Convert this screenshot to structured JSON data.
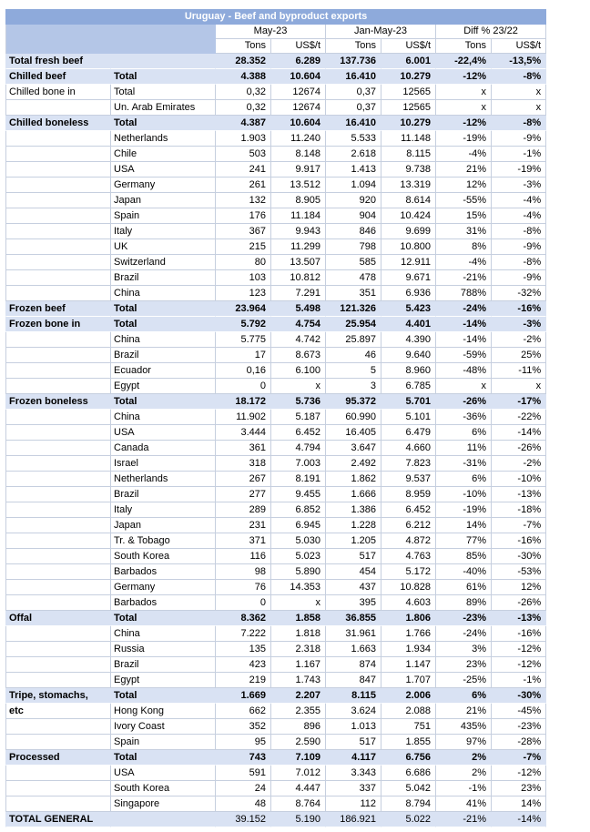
{
  "title": "Uruguay - Beef and byproduct exports",
  "header": {
    "groups": [
      "May-23",
      "Jan-May-23",
      "Diff % 23/22"
    ],
    "subcols": [
      "Tons",
      "US$/t",
      "Tons",
      "US$/t",
      "Tons",
      "US$/t"
    ]
  },
  "colors": {
    "title_bg": "#8EAADB",
    "header_left_bg": "#B4C6E7",
    "total_row_bg": "#D9E2F3",
    "border": "#C6CFDF",
    "title_text": "#FFFFFF"
  },
  "rows": [
    {
      "cat": "Total fresh beef",
      "label": "",
      "values": [
        "28.352",
        "6.289",
        "137.736",
        "6.001",
        "-22,4%",
        "-13,5%"
      ],
      "style": "total"
    },
    {
      "cat": "Chilled beef",
      "label": "Total",
      "values": [
        "4.388",
        "10.604",
        "16.410",
        "10.279",
        "-12%",
        "-8%"
      ],
      "style": "total"
    },
    {
      "cat": "Chilled bone in",
      "label": "Total",
      "values": [
        "0,32",
        "12674",
        "0,37",
        "12565",
        "x",
        "x"
      ],
      "style": "normal"
    },
    {
      "cat": "",
      "label": "Un. Arab Emirates",
      "values": [
        "0,32",
        "12674",
        "0,37",
        "12565",
        "x",
        "x"
      ],
      "style": "normal"
    },
    {
      "cat": "Chilled boneless",
      "label": "Total",
      "values": [
        "4.387",
        "10.604",
        "16.410",
        "10.279",
        "-12%",
        "-8%"
      ],
      "style": "total"
    },
    {
      "cat": "",
      "label": "Netherlands",
      "values": [
        "1.903",
        "11.240",
        "5.533",
        "11.148",
        "-19%",
        "-9%"
      ],
      "style": "normal"
    },
    {
      "cat": "",
      "label": "Chile",
      "values": [
        "503",
        "8.148",
        "2.618",
        "8.115",
        "-4%",
        "-1%"
      ],
      "style": "normal"
    },
    {
      "cat": "",
      "label": "USA",
      "values": [
        "241",
        "9.917",
        "1.413",
        "9.738",
        "21%",
        "-19%"
      ],
      "style": "normal"
    },
    {
      "cat": "",
      "label": "Germany",
      "values": [
        "261",
        "13.512",
        "1.094",
        "13.319",
        "12%",
        "-3%"
      ],
      "style": "normal"
    },
    {
      "cat": "",
      "label": "Japan",
      "values": [
        "132",
        "8.905",
        "920",
        "8.614",
        "-55%",
        "-4%"
      ],
      "style": "normal"
    },
    {
      "cat": "",
      "label": "Spain",
      "values": [
        "176",
        "11.184",
        "904",
        "10.424",
        "15%",
        "-4%"
      ],
      "style": "normal"
    },
    {
      "cat": "",
      "label": "Italy",
      "values": [
        "367",
        "9.943",
        "846",
        "9.699",
        "31%",
        "-8%"
      ],
      "style": "normal"
    },
    {
      "cat": "",
      "label": "UK",
      "values": [
        "215",
        "11.299",
        "798",
        "10.800",
        "8%",
        "-9%"
      ],
      "style": "normal"
    },
    {
      "cat": "",
      "label": "Switzerland",
      "values": [
        "80",
        "13.507",
        "585",
        "12.911",
        "-4%",
        "-8%"
      ],
      "style": "normal"
    },
    {
      "cat": "",
      "label": "Brazil",
      "values": [
        "103",
        "10.812",
        "478",
        "9.671",
        "-21%",
        "-9%"
      ],
      "style": "normal"
    },
    {
      "cat": "",
      "label": "China",
      "values": [
        "123",
        "7.291",
        "351",
        "6.936",
        "788%",
        "-32%"
      ],
      "style": "normal"
    },
    {
      "cat": "Frozen beef",
      "label": "Total",
      "values": [
        "23.964",
        "5.498",
        "121.326",
        "5.423",
        "-24%",
        "-16%"
      ],
      "style": "total"
    },
    {
      "cat": "Frozen bone in",
      "label": "Total",
      "values": [
        "5.792",
        "4.754",
        "25.954",
        "4.401",
        "-14%",
        "-3%"
      ],
      "style": "total"
    },
    {
      "cat": "",
      "label": "China",
      "values": [
        "5.775",
        "4.742",
        "25.897",
        "4.390",
        "-14%",
        "-2%"
      ],
      "style": "normal"
    },
    {
      "cat": "",
      "label": "Brazil",
      "values": [
        "17",
        "8.673",
        "46",
        "9.640",
        "-59%",
        "25%"
      ],
      "style": "normal"
    },
    {
      "cat": "",
      "label": "Ecuador",
      "values": [
        "0,16",
        "6.100",
        "5",
        "8.960",
        "-48%",
        "-11%"
      ],
      "style": "normal"
    },
    {
      "cat": "",
      "label": "Egypt",
      "values": [
        "0",
        "x",
        "3",
        "6.785",
        "x",
        "x"
      ],
      "style": "normal"
    },
    {
      "cat": "Frozen boneless",
      "label": "Total",
      "values": [
        "18.172",
        "5.736",
        "95.372",
        "5.701",
        "-26%",
        "-17%"
      ],
      "style": "total"
    },
    {
      "cat": "",
      "label": "China",
      "values": [
        "11.902",
        "5.187",
        "60.990",
        "5.101",
        "-36%",
        "-22%"
      ],
      "style": "normal"
    },
    {
      "cat": "",
      "label": "USA",
      "values": [
        "3.444",
        "6.452",
        "16.405",
        "6.479",
        "6%",
        "-14%"
      ],
      "style": "normal"
    },
    {
      "cat": "",
      "label": "Canada",
      "values": [
        "361",
        "4.794",
        "3.647",
        "4.660",
        "11%",
        "-26%"
      ],
      "style": "normal"
    },
    {
      "cat": "",
      "label": "Israel",
      "values": [
        "318",
        "7.003",
        "2.492",
        "7.823",
        "-31%",
        "-2%"
      ],
      "style": "normal"
    },
    {
      "cat": "",
      "label": "Netherlands",
      "values": [
        "267",
        "8.191",
        "1.862",
        "9.537",
        "6%",
        "-10%"
      ],
      "style": "normal"
    },
    {
      "cat": "",
      "label": "Brazil",
      "values": [
        "277",
        "9.455",
        "1.666",
        "8.959",
        "-10%",
        "-13%"
      ],
      "style": "normal"
    },
    {
      "cat": "",
      "label": "Italy",
      "values": [
        "289",
        "6.852",
        "1.386",
        "6.452",
        "-19%",
        "-18%"
      ],
      "style": "normal"
    },
    {
      "cat": "",
      "label": "Japan",
      "values": [
        "231",
        "6.945",
        "1.228",
        "6.212",
        "14%",
        "-7%"
      ],
      "style": "normal"
    },
    {
      "cat": "",
      "label": "Tr. & Tobago",
      "values": [
        "371",
        "5.030",
        "1.205",
        "4.872",
        "77%",
        "-16%"
      ],
      "style": "normal"
    },
    {
      "cat": "",
      "label": "South Korea",
      "values": [
        "116",
        "5.023",
        "517",
        "4.763",
        "85%",
        "-30%"
      ],
      "style": "normal"
    },
    {
      "cat": "",
      "label": "Barbados",
      "values": [
        "98",
        "5.890",
        "454",
        "5.172",
        "-40%",
        "-53%"
      ],
      "style": "normal"
    },
    {
      "cat": "",
      "label": "Germany",
      "values": [
        "76",
        "14.353",
        "437",
        "10.828",
        "61%",
        "12%"
      ],
      "style": "normal"
    },
    {
      "cat": "",
      "label": "Barbados",
      "values": [
        "0",
        "x",
        "395",
        "4.603",
        "89%",
        "-26%"
      ],
      "style": "normal"
    },
    {
      "cat": "Offal",
      "label": "Total",
      "values": [
        "8.362",
        "1.858",
        "36.855",
        "1.806",
        "-23%",
        "-13%"
      ],
      "style": "total"
    },
    {
      "cat": "",
      "label": "China",
      "values": [
        "7.222",
        "1.818",
        "31.961",
        "1.766",
        "-24%",
        "-16%"
      ],
      "style": "normal"
    },
    {
      "cat": "",
      "label": "Russia",
      "values": [
        "135",
        "2.318",
        "1.663",
        "1.934",
        "3%",
        "-12%"
      ],
      "style": "normal"
    },
    {
      "cat": "",
      "label": "Brazil",
      "values": [
        "423",
        "1.167",
        "874",
        "1.147",
        "23%",
        "-12%"
      ],
      "style": "normal"
    },
    {
      "cat": "",
      "label": "Egypt",
      "values": [
        "219",
        "1.743",
        "847",
        "1.707",
        "-25%",
        "-1%"
      ],
      "style": "normal"
    },
    {
      "cat": "Tripe, stomachs,",
      "label": "Total",
      "values": [
        "1.669",
        "2.207",
        "8.115",
        "2.006",
        "6%",
        "-30%"
      ],
      "style": "total"
    },
    {
      "cat": "etc",
      "label": "Hong Kong",
      "values": [
        "662",
        "2.355",
        "3.624",
        "2.088",
        "21%",
        "-45%"
      ],
      "style": "normal",
      "cat_bold": true
    },
    {
      "cat": "",
      "label": "Ivory Coast",
      "values": [
        "352",
        "896",
        "1.013",
        "751",
        "435%",
        "-23%"
      ],
      "style": "normal"
    },
    {
      "cat": "",
      "label": "Spain",
      "values": [
        "95",
        "2.590",
        "517",
        "1.855",
        "97%",
        "-28%"
      ],
      "style": "normal"
    },
    {
      "cat": "Processed",
      "label": "Total",
      "values": [
        "743",
        "7.109",
        "4.117",
        "6.756",
        "2%",
        "-7%"
      ],
      "style": "total"
    },
    {
      "cat": "",
      "label": "USA",
      "values": [
        "591",
        "7.012",
        "3.343",
        "6.686",
        "2%",
        "-12%"
      ],
      "style": "normal"
    },
    {
      "cat": "",
      "label": "South Korea",
      "values": [
        "24",
        "4.447",
        "337",
        "5.042",
        "-1%",
        "23%"
      ],
      "style": "normal"
    },
    {
      "cat": "",
      "label": "Singapore",
      "values": [
        "48",
        "8.764",
        "112",
        "8.794",
        "41%",
        "14%"
      ],
      "style": "normal"
    },
    {
      "cat": "TOTAL GENERAL",
      "label": "",
      "values": [
        "39.152",
        "5.190",
        "186.921",
        "5.022",
        "-21%",
        "-14%"
      ],
      "style": "grand"
    }
  ]
}
